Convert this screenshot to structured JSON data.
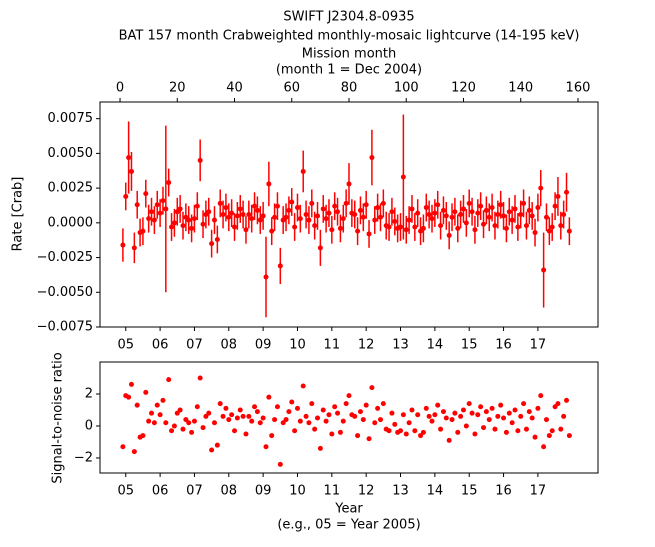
{
  "chart_data": [
    {
      "type": "errorbar",
      "title": "SWIFT J2304.8-0935",
      "subtitle": "BAT 157 month Crabweighted monthly-mosaic lightcurve (14-195 keV)",
      "top_axis_label": "Mission month",
      "top_axis_sublabel": "(month 1 = Dec 2004)",
      "ylabel": "Rate [Crab]",
      "color": "#ff0000",
      "xlim": [
        -7,
        167
      ],
      "ylim": [
        -0.0075,
        0.0087
      ],
      "top_xticks": [
        0,
        20,
        40,
        60,
        80,
        100,
        120,
        140,
        160
      ],
      "xticks": [
        {
          "value": 2,
          "label": "05"
        },
        {
          "value": 14,
          "label": "06"
        },
        {
          "value": 26,
          "label": "07"
        },
        {
          "value": 38,
          "label": "08"
        },
        {
          "value": 50,
          "label": "09"
        },
        {
          "value": 62,
          "label": "10"
        },
        {
          "value": 74,
          "label": "11"
        },
        {
          "value": 86,
          "label": "12"
        },
        {
          "value": 98,
          "label": "13"
        },
        {
          "value": 110,
          "label": "14"
        },
        {
          "value": 122,
          "label": "15"
        },
        {
          "value": 134,
          "label": "16"
        },
        {
          "value": 146,
          "label": "17"
        }
      ],
      "yticks": [
        {
          "value": -0.0075,
          "label": "−0.0075"
        },
        {
          "value": -0.005,
          "label": "−0.0050"
        },
        {
          "value": -0.0025,
          "label": "−0.0025"
        },
        {
          "value": 0,
          "label": "0.0000"
        },
        {
          "value": 0.0025,
          "label": "0.0025"
        },
        {
          "value": 0.005,
          "label": "0.0050"
        },
        {
          "value": 0.0075,
          "label": "0.0075"
        }
      ],
      "x": [
        1,
        2,
        3,
        4,
        5,
        6,
        7,
        8,
        9,
        10,
        11,
        12,
        13,
        14,
        15,
        16,
        17,
        18,
        19,
        20,
        21,
        22,
        23,
        24,
        25,
        26,
        27,
        28,
        29,
        30,
        31,
        32,
        33,
        34,
        35,
        36,
        37,
        38,
        39,
        40,
        41,
        42,
        43,
        44,
        45,
        46,
        47,
        48,
        49,
        50,
        51,
        52,
        53,
        54,
        55,
        56,
        57,
        58,
        59,
        60,
        61,
        62,
        63,
        64,
        65,
        66,
        67,
        68,
        69,
        70,
        71,
        72,
        73,
        74,
        75,
        76,
        77,
        78,
        79,
        80,
        81,
        82,
        83,
        84,
        85,
        86,
        87,
        88,
        89,
        90,
        91,
        92,
        93,
        94,
        95,
        96,
        97,
        98,
        99,
        100,
        101,
        102,
        103,
        104,
        105,
        106,
        107,
        108,
        109,
        110,
        111,
        112,
        113,
        114,
        115,
        116,
        117,
        118,
        119,
        120,
        121,
        122,
        123,
        124,
        125,
        126,
        127,
        128,
        129,
        130,
        131,
        132,
        133,
        134,
        135,
        136,
        137,
        138,
        139,
        140,
        141,
        142,
        143,
        144,
        145,
        146,
        147,
        148,
        149,
        150,
        151,
        152,
        153,
        154,
        155,
        156,
        157
      ],
      "values": [
        -0.0016,
        0.0019,
        0.0047,
        0.0037,
        -0.0018,
        0.0013,
        -0.0007,
        -0.0006,
        0.0021,
        0.0003,
        0.0008,
        0.0002,
        0.0013,
        0.0007,
        0.0016,
        0.001,
        0.0029,
        -0.0003,
        0.0,
        0.0008,
        0.001,
        -0.0002,
        0.0004,
        0.0002,
        -0.0004,
        0.0003,
        0.0012,
        0.0045,
        -0.0001,
        0.0006,
        0.0008,
        -0.0015,
        0.0002,
        -0.0012,
        0.0014,
        0.0006,
        0.0011,
        0.0004,
        0.0007,
        -0.0003,
        0.0005,
        0.001,
        0.0006,
        -0.0005,
        0.0006,
        0.0003,
        0.0012,
        0.0009,
        0.0002,
        0.0005,
        -0.0039,
        0.0028,
        -0.0006,
        0.0004,
        0.0012,
        -0.0031,
        0.0002,
        0.0004,
        0.0009,
        0.0015,
        -0.0003,
        0.0011,
        0.0003,
        0.0037,
        0.0006,
        0.0002,
        0.0014,
        -0.0002,
        0.0005,
        -0.0018,
        0.001,
        0.0003,
        0.0007,
        -0.0005,
        0.0012,
        0.0008,
        -0.0004,
        0.0003,
        0.0014,
        0.0028,
        0.0007,
        0.0006,
        -0.0006,
        0.0009,
        0.0004,
        0.0013,
        -0.0008,
        0.0047,
        0.0002,
        0.0011,
        0.0004,
        0.0014,
        -0.0002,
        -0.0003,
        0.0008,
        0.0001,
        -0.0004,
        -0.0003,
        0.0033,
        -0.0005,
        0.0002,
        0.001,
        -0.0003,
        0.0007,
        -0.0006,
        -0.0004,
        0.0011,
        0.0006,
        0.0003,
        0.0007,
        0.0013,
        -0.0002,
        0.0009,
        0.0005,
        -0.0009,
        0.0004,
        0.0008,
        -0.0004,
        0.0006,
        0.001,
        0.0,
        0.0014,
        0.0008,
        -0.0005,
        0.0007,
        0.0012,
        -0.0001,
        0.0009,
        0.0004,
        0.0011,
        -0.0002,
        0.0006,
        0.0013,
        0.0005,
        -0.0004,
        0.0008,
        0.0002,
        0.001,
        -0.0003,
        0.0006,
        0.0014,
        -0.0002,
        0.0009,
        0.0005,
        -0.0007,
        0.0011,
        0.0025,
        -0.0034,
        0.0004,
        -0.0006,
        -0.0003,
        0.0012,
        0.0019,
        -0.0002,
        0.0006,
        0.0022,
        -0.0006
      ],
      "errors": [
        0.0012,
        0.001,
        0.0026,
        0.0014,
        0.0011,
        0.001,
        0.001,
        0.001,
        0.001,
        0.001,
        0.001,
        0.001,
        0.001,
        0.001,
        0.001,
        0.006,
        0.001,
        0.001,
        0.001,
        0.001,
        0.001,
        0.001,
        0.001,
        0.001,
        0.001,
        0.001,
        0.001,
        0.0015,
        0.001,
        0.001,
        0.001,
        0.001,
        0.001,
        0.001,
        0.001,
        0.001,
        0.001,
        0.001,
        0.001,
        0.001,
        0.001,
        0.001,
        0.001,
        0.001,
        0.001,
        0.001,
        0.001,
        0.001,
        0.001,
        0.001,
        0.0029,
        0.0016,
        0.001,
        0.001,
        0.001,
        0.0013,
        0.001,
        0.001,
        0.001,
        0.001,
        0.001,
        0.001,
        0.001,
        0.0015,
        0.001,
        0.001,
        0.001,
        0.001,
        0.001,
        0.0013,
        0.001,
        0.001,
        0.001,
        0.001,
        0.001,
        0.001,
        0.001,
        0.001,
        0.001,
        0.0015,
        0.001,
        0.001,
        0.001,
        0.001,
        0.001,
        0.001,
        0.001,
        0.002,
        0.001,
        0.001,
        0.001,
        0.001,
        0.001,
        0.001,
        0.001,
        0.001,
        0.001,
        0.001,
        0.0045,
        0.001,
        0.001,
        0.001,
        0.001,
        0.001,
        0.001,
        0.001,
        0.001,
        0.001,
        0.001,
        0.001,
        0.001,
        0.001,
        0.001,
        0.001,
        0.001,
        0.001,
        0.001,
        0.001,
        0.001,
        0.001,
        0.001,
        0.001,
        0.001,
        0.001,
        0.001,
        0.001,
        0.001,
        0.001,
        0.001,
        0.001,
        0.001,
        0.001,
        0.001,
        0.001,
        0.001,
        0.001,
        0.001,
        0.001,
        0.001,
        0.001,
        0.001,
        0.001,
        0.001,
        0.001,
        0.001,
        0.001,
        0.0013,
        0.0027,
        0.001,
        0.001,
        0.001,
        0.001,
        0.0014,
        0.001,
        0.001,
        0.0014,
        0.001
      ]
    },
    {
      "type": "scatter",
      "xlabel": "Year",
      "xsublabel": "(e.g., 05 = Year 2005)",
      "ylabel": "Signal-to-noise ratio",
      "color": "#ff0000",
      "xlim": [
        -7,
        167
      ],
      "ylim": [
        -2.94,
        4.0
      ],
      "xticks": [
        {
          "value": 2,
          "label": "05"
        },
        {
          "value": 14,
          "label": "06"
        },
        {
          "value": 26,
          "label": "07"
        },
        {
          "value": 38,
          "label": "08"
        },
        {
          "value": 50,
          "label": "09"
        },
        {
          "value": 62,
          "label": "10"
        },
        {
          "value": 74,
          "label": "11"
        },
        {
          "value": 86,
          "label": "12"
        },
        {
          "value": 98,
          "label": "13"
        },
        {
          "value": 110,
          "label": "14"
        },
        {
          "value": 122,
          "label": "15"
        },
        {
          "value": 134,
          "label": "16"
        },
        {
          "value": 146,
          "label": "17"
        }
      ],
      "yticks": [
        {
          "value": -2,
          "label": "−2"
        },
        0,
        2
      ],
      "x": [
        1,
        2,
        3,
        4,
        5,
        6,
        7,
        8,
        9,
        10,
        11,
        12,
        13,
        14,
        15,
        16,
        17,
        18,
        19,
        20,
        21,
        22,
        23,
        24,
        25,
        26,
        27,
        28,
        29,
        30,
        31,
        32,
        33,
        34,
        35,
        36,
        37,
        38,
        39,
        40,
        41,
        42,
        43,
        44,
        45,
        46,
        47,
        48,
        49,
        50,
        51,
        52,
        53,
        54,
        55,
        56,
        57,
        58,
        59,
        60,
        61,
        62,
        63,
        64,
        65,
        66,
        67,
        68,
        69,
        70,
        71,
        72,
        73,
        74,
        75,
        76,
        77,
        78,
        79,
        80,
        81,
        82,
        83,
        84,
        85,
        86,
        87,
        88,
        89,
        90,
        91,
        92,
        93,
        94,
        95,
        96,
        97,
        98,
        99,
        100,
        101,
        102,
        103,
        104,
        105,
        106,
        107,
        108,
        109,
        110,
        111,
        112,
        113,
        114,
        115,
        116,
        117,
        118,
        119,
        120,
        121,
        122,
        123,
        124,
        125,
        126,
        127,
        128,
        129,
        130,
        131,
        132,
        133,
        134,
        135,
        136,
        137,
        138,
        139,
        140,
        141,
        142,
        143,
        144,
        145,
        146,
        147,
        148,
        149,
        150,
        151,
        152,
        153,
        154,
        155,
        156,
        157
      ],
      "values": [
        -1.3,
        1.9,
        1.8,
        2.6,
        -1.6,
        1.3,
        -0.7,
        -0.6,
        2.1,
        0.3,
        0.8,
        0.2,
        1.3,
        0.7,
        1.6,
        0.2,
        2.9,
        -0.3,
        0.0,
        0.8,
        1.0,
        -0.2,
        0.4,
        0.2,
        -0.4,
        0.3,
        1.2,
        3.0,
        -0.1,
        0.6,
        0.8,
        -1.5,
        0.2,
        -1.2,
        1.4,
        0.6,
        1.1,
        0.4,
        0.7,
        -0.3,
        0.5,
        1.0,
        0.6,
        -0.5,
        0.6,
        0.3,
        1.2,
        0.9,
        0.2,
        0.5,
        -1.3,
        1.8,
        -0.6,
        0.4,
        1.2,
        -2.4,
        0.2,
        0.4,
        0.9,
        1.5,
        -0.3,
        1.1,
        0.3,
        2.5,
        0.6,
        0.2,
        1.4,
        -0.2,
        0.5,
        -1.4,
        1.0,
        0.3,
        0.7,
        -0.5,
        1.2,
        0.8,
        -0.4,
        0.3,
        1.4,
        1.9,
        0.7,
        0.6,
        -0.6,
        0.9,
        0.4,
        1.3,
        -0.8,
        2.4,
        0.2,
        1.1,
        0.4,
        1.4,
        -0.2,
        -0.3,
        0.8,
        0.1,
        -0.4,
        -0.3,
        0.7,
        -0.5,
        0.2,
        1.0,
        -0.3,
        0.7,
        -0.6,
        -0.4,
        1.1,
        0.6,
        0.3,
        0.7,
        1.3,
        -0.2,
        0.9,
        0.5,
        -0.9,
        0.4,
        0.8,
        -0.4,
        0.6,
        1.0,
        0.0,
        1.4,
        0.8,
        -0.5,
        0.7,
        1.2,
        -0.1,
        0.9,
        0.4,
        1.1,
        -0.2,
        0.6,
        1.3,
        0.5,
        -0.4,
        0.8,
        0.2,
        1.0,
        -0.3,
        0.6,
        1.4,
        -0.2,
        0.9,
        0.5,
        -0.7,
        1.1,
        1.9,
        -1.3,
        0.4,
        -0.6,
        -0.3,
        1.2,
        1.4,
        -0.2,
        0.6,
        1.6,
        -0.6
      ]
    }
  ]
}
